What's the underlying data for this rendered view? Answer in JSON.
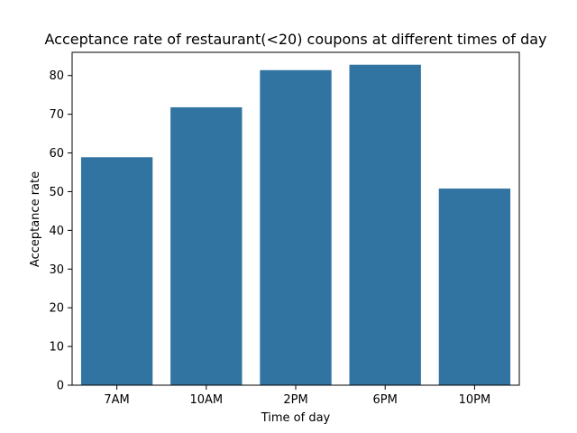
{
  "chart_data": {
    "type": "bar",
    "title": "Acceptance rate of restaurant(<20) coupons at different times of day",
    "xlabel": "Time of day",
    "ylabel": "Acceptance rate",
    "categories": [
      "7AM",
      "10AM",
      "2PM",
      "6PM",
      "10PM"
    ],
    "values": [
      58.9,
      71.8,
      81.4,
      82.8,
      50.8
    ],
    "ylim": [
      0,
      86
    ],
    "yticks": [
      0,
      10,
      20,
      30,
      40,
      50,
      60,
      70,
      80
    ],
    "grid": false,
    "legend": "none",
    "bar_color": "#3274a1"
  }
}
